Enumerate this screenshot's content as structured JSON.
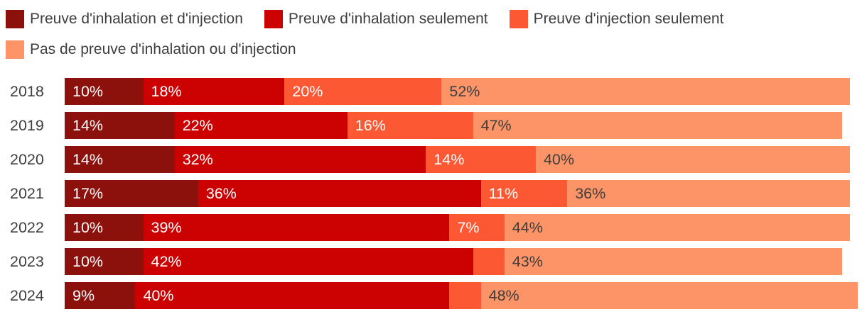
{
  "page": {
    "background": "#ffffff",
    "text_color": "#3e3e3e"
  },
  "chart_data": {
    "type": "bar",
    "stacked": true,
    "orientation": "horizontal",
    "title": "",
    "legend_position": "top",
    "value_suffix": "%",
    "min_label_value": 5,
    "categories": [
      "2018",
      "2019",
      "2020",
      "2021",
      "2022",
      "2023",
      "2024"
    ],
    "series": [
      {
        "name": "Preuve d'inhalation et d'injection",
        "color": "#8c100b",
        "label_color": "#ffffff",
        "values": [
          10,
          14,
          14,
          17,
          10,
          10,
          9
        ]
      },
      {
        "name": "Preuve d'inhalation seulement",
        "color": "#cc0202",
        "label_color": "#ffffff",
        "values": [
          18,
          22,
          32,
          36,
          39,
          42,
          40
        ]
      },
      {
        "name": "Preuve d'injection seulement",
        "color": "#fc5833",
        "label_color": "#ffffff",
        "values": [
          20,
          16,
          14,
          11,
          7,
          4,
          4
        ]
      },
      {
        "name": "Pas de preuve d'inhalation ou d'injection",
        "color": "#fc9467",
        "label_color": "#3e3e3e",
        "values": [
          52,
          47,
          40,
          36,
          44,
          43,
          48
        ]
      }
    ]
  }
}
